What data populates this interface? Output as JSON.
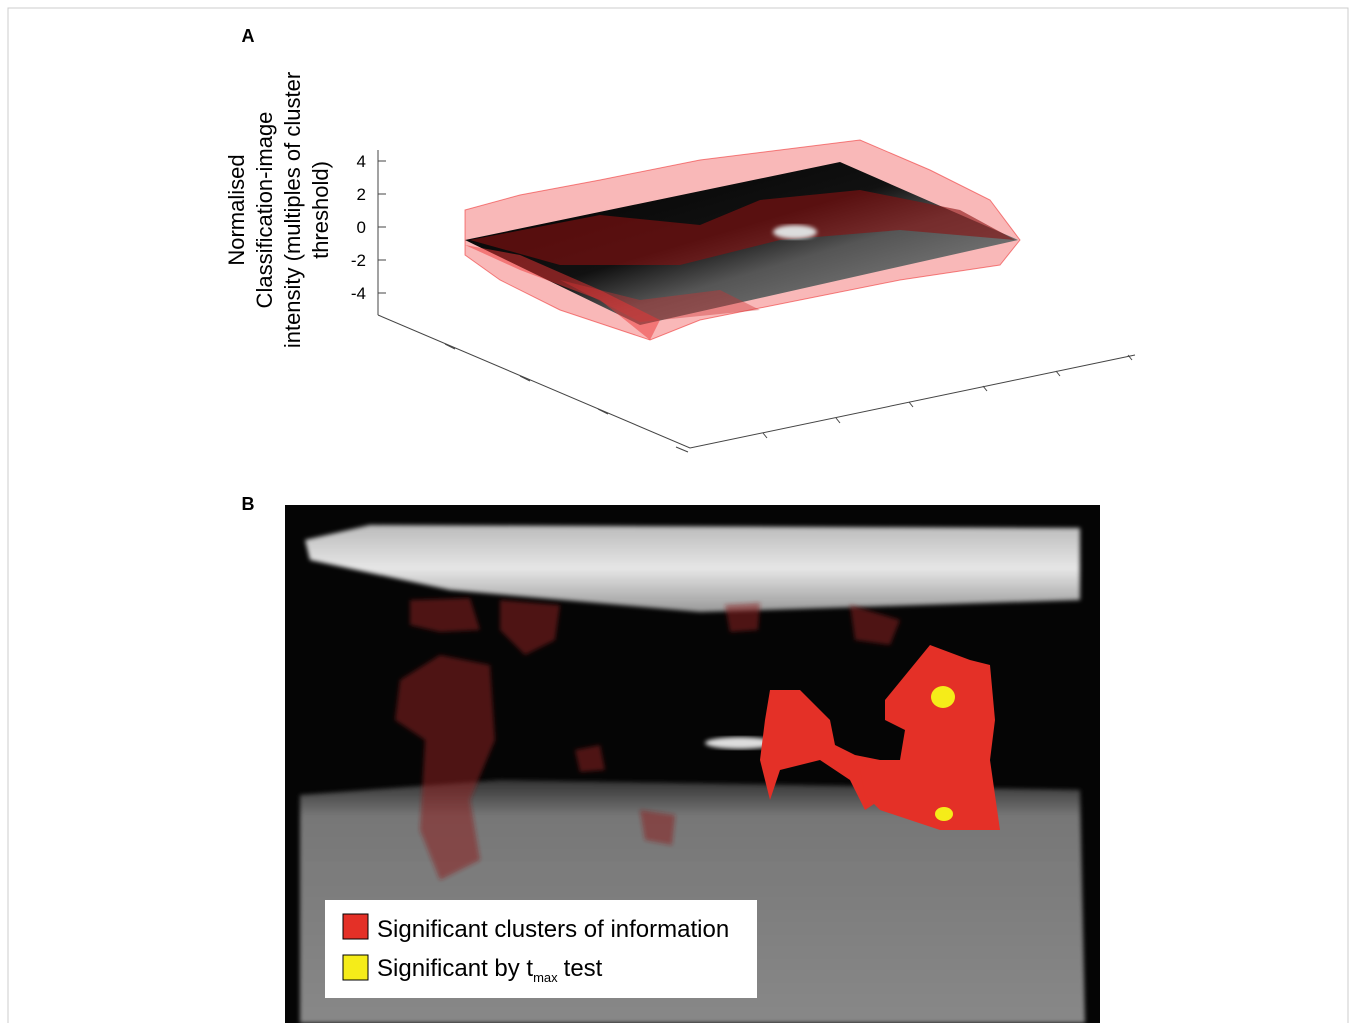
{
  "panel_a": {
    "label": "A",
    "axis_label": [
      "Normalised",
      "Classification-image",
      "intensity (multiples of cluster",
      "threshold)"
    ],
    "zticks": [
      4,
      2,
      0,
      -2,
      -4
    ]
  },
  "panel_b": {
    "label": "B",
    "legend": [
      {
        "text": "Significant clusters of information"
      },
      {
        "text": "Significant by t",
        "subscript": "max",
        "suffix": "test"
      }
    ]
  }
}
